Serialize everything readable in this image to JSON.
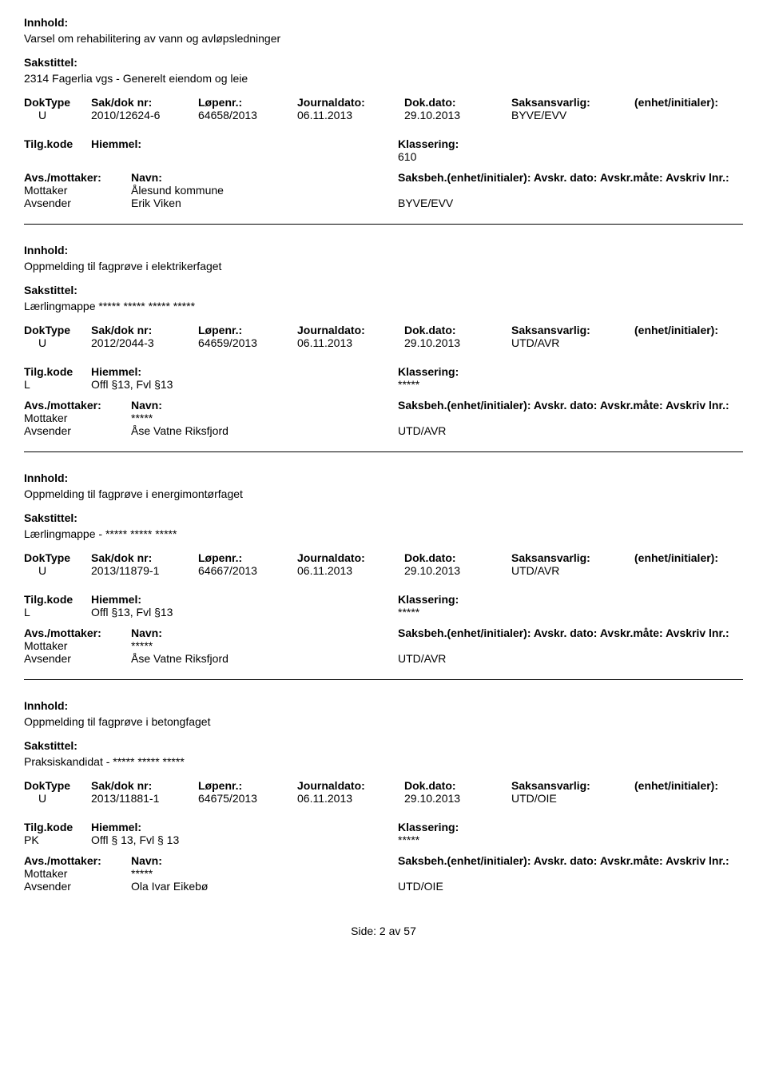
{
  "labels": {
    "innhold": "Innhold:",
    "sakstittel": "Sakstittel:",
    "doktype": "DokType",
    "sakdoknr": "Sak/dok nr:",
    "lopenr": "Løpenr.:",
    "journaldato": "Journaldato:",
    "dokdato": "Dok.dato:",
    "saksansvarlig": "Saksansvarlig:",
    "enhet": "(enhet/initialer):",
    "tilgkode": "Tilg.kode",
    "hjemmel": "Hiemmel:",
    "klassering": "Klassering:",
    "avsmottaker": "Avs./mottaker:",
    "navn": "Navn:",
    "saksbeh_full": "Saksbeh.(enhet/initialer): Avskr. dato:  Avskr.måte:  Avskriv lnr.:",
    "mottaker": "Mottaker",
    "avsender": "Avsender"
  },
  "records": [
    {
      "innhold": "Varsel om rehabilitering av vann og avløpsledninger",
      "sakstittel": "2314 Fagerlia vgs - Generelt eiendom og leie",
      "doktype": "U",
      "sakdoknr": "2010/12624-6",
      "lopenr": "64658/2013",
      "journaldato": "06.11.2013",
      "dokdato": "29.10.2013",
      "saksansvarlig": "BYVE/EVV",
      "tilgkode": "",
      "hjemmel": "",
      "klassering": "610",
      "mottaker_navn": "Ålesund kommune",
      "avsender_navn": "Erik Viken",
      "avsender_enhet": "BYVE/EVV"
    },
    {
      "innhold": "Oppmelding til fagprøve i elektrikerfaget",
      "sakstittel": "Lærlingmappe ***** ***** ***** *****",
      "doktype": "U",
      "sakdoknr": "2012/2044-3",
      "lopenr": "64659/2013",
      "journaldato": "06.11.2013",
      "dokdato": "29.10.2013",
      "saksansvarlig": "UTD/AVR",
      "tilgkode": "L",
      "hjemmel": "Offl §13, Fvl §13",
      "klassering": "*****",
      "mottaker_navn": "*****",
      "avsender_navn": "Åse Vatne Riksfjord",
      "avsender_enhet": "UTD/AVR"
    },
    {
      "innhold": "Oppmelding til fagprøve i energimontørfaget",
      "sakstittel": "Lærlingmappe - ***** ***** *****",
      "doktype": "U",
      "sakdoknr": "2013/11879-1",
      "lopenr": "64667/2013",
      "journaldato": "06.11.2013",
      "dokdato": "29.10.2013",
      "saksansvarlig": "UTD/AVR",
      "tilgkode": "L",
      "hjemmel": "Offl §13, Fvl §13",
      "klassering": "*****",
      "mottaker_navn": "*****",
      "avsender_navn": "Åse Vatne Riksfjord",
      "avsender_enhet": "UTD/AVR"
    },
    {
      "innhold": "Oppmelding til fagprøve i betongfaget",
      "sakstittel": "Praksiskandidat - ***** ***** *****",
      "doktype": "U",
      "sakdoknr": "2013/11881-1",
      "lopenr": "64675/2013",
      "journaldato": "06.11.2013",
      "dokdato": "29.10.2013",
      "saksansvarlig": "UTD/OIE",
      "tilgkode": "PK",
      "hjemmel": "Offl § 13, Fvl § 13",
      "klassering": "*****",
      "mottaker_navn": "*****",
      "avsender_navn": "Ola Ivar Eikebø",
      "avsender_enhet": "UTD/OIE"
    }
  ],
  "footer": "Side:  2 av  57"
}
